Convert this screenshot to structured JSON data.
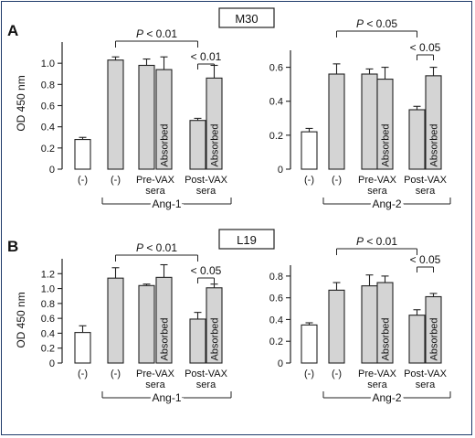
{
  "panels": [
    {
      "letter": "A",
      "title": "M30",
      "ylabel": "OD 450 nm",
      "charts": [
        {
          "ylim": [
            0,
            1.2
          ],
          "ticks": [
            "0",
            "0.2",
            "0.4",
            "0.6",
            "0.8",
            "1.0"
          ],
          "tick_values": [
            0,
            0.2,
            0.4,
            0.6,
            0.8,
            1.0
          ],
          "group": "Ang-1",
          "main_p": "P < 0.01",
          "sub_p": "< 0.01",
          "chart_data": {
            "type": "bar",
            "categories": [
              "(-)",
              "(-)",
              "Pre-VAX sera",
              "Pre-VAX sera Absorbed",
              "Post-VAX sera",
              "Post-VAX sera Absorbed"
            ],
            "values": [
              0.28,
              1.03,
              0.98,
              0.94,
              0.46,
              0.86
            ],
            "errors": [
              0.02,
              0.03,
              0.06,
              0.12,
              0.02,
              0.12
            ]
          }
        },
        {
          "ylim": [
            0,
            0.7
          ],
          "ticks": [
            "0",
            "0.2",
            "0.4",
            "0.6"
          ],
          "tick_values": [
            0,
            0.2,
            0.4,
            0.6
          ],
          "group": "Ang-2",
          "main_p": "P < 0.05",
          "sub_p": "< 0.05",
          "chart_data": {
            "type": "bar",
            "categories": [
              "(-)",
              "(-)",
              "Pre-VAX sera",
              "Pre-VAX sera Absorbed",
              "Post-VAX sera",
              "Post-VAX sera Absorbed"
            ],
            "values": [
              0.22,
              0.56,
              0.56,
              0.53,
              0.35,
              0.55
            ],
            "errors": [
              0.02,
              0.06,
              0.03,
              0.07,
              0.02,
              0.05
            ]
          }
        }
      ]
    },
    {
      "letter": "B",
      "title": "L19",
      "ylabel": "OD 450 nm",
      "charts": [
        {
          "ylim": [
            0,
            1.4
          ],
          "ticks": [
            "0",
            "0.2",
            "0.4",
            "0.6",
            "0.8",
            "1.0",
            "1.2"
          ],
          "tick_values": [
            0,
            0.2,
            0.4,
            0.6,
            0.8,
            1.0,
            1.2
          ],
          "group": "Ang-1",
          "main_p": "P < 0.01",
          "sub_p": "< 0.05",
          "chart_data": {
            "type": "bar",
            "categories": [
              "(-)",
              "(-)",
              "Pre-VAX sera",
              "Pre-VAX sera Absorbed",
              "Post-VAX sera",
              "Post-VAX sera Absorbed"
            ],
            "values": [
              0.41,
              1.14,
              1.04,
              1.15,
              0.59,
              1.01
            ],
            "errors": [
              0.09,
              0.14,
              0.02,
              0.17,
              0.09,
              0.05
            ]
          }
        },
        {
          "ylim": [
            0,
            0.9
          ],
          "ticks": [
            "0",
            "0.2",
            "0.4",
            "0.6",
            "0.8"
          ],
          "tick_values": [
            0,
            0.2,
            0.4,
            0.6,
            0.8
          ],
          "group": "Ang-2",
          "main_p": "P < 0.01",
          "sub_p": "< 0.05",
          "chart_data": {
            "type": "bar",
            "categories": [
              "(-)",
              "(-)",
              "Pre-VAX sera",
              "Pre-VAX sera Absorbed",
              "Post-VAX sera",
              "Post-VAX sera Absorbed"
            ],
            "values": [
              0.35,
              0.67,
              0.71,
              0.74,
              0.44,
              0.61
            ],
            "errors": [
              0.02,
              0.07,
              0.1,
              0.06,
              0.05,
              0.03
            ]
          }
        }
      ]
    }
  ],
  "labels": {
    "neg": "(-)",
    "pre_line1": "Pre-VAX",
    "post_line1": "Post-VAX",
    "sera": "sera",
    "absorbed": "Absorbed"
  },
  "colors": {
    "control_fill": "#ffffff",
    "bar_fill": "#d4d4d4",
    "stroke": "#222222",
    "frame": "#1f3a6a"
  }
}
